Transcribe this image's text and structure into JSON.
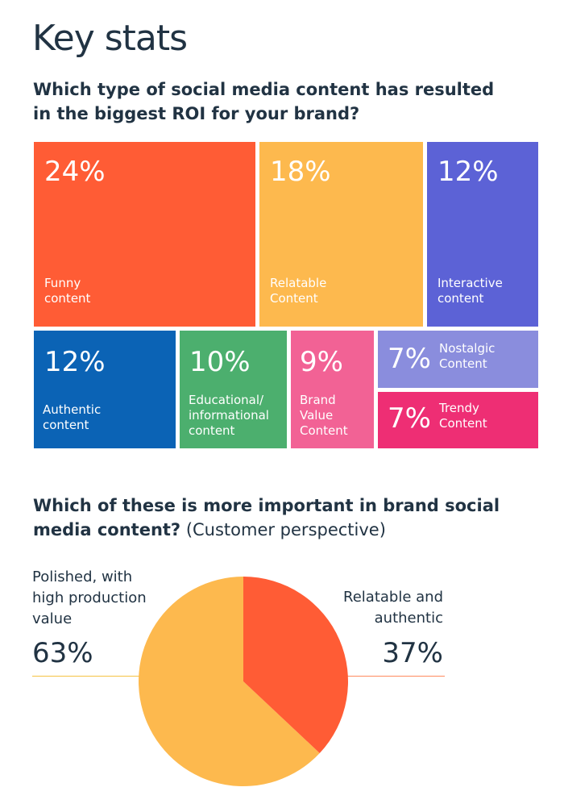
{
  "page": {
    "title": "Key stats",
    "q1": "Which type of social media content has resulted in the biggest ROI for your brand?",
    "q2_bold": "Which of these is more important in brand social media content?",
    "q2_normal": "(Customer perspective)"
  },
  "chart_data": [
    {
      "type": "treemap",
      "title": "Which type of social media content has resulted in the biggest ROI for your brand?",
      "items": [
        {
          "label": "Funny content",
          "value": 24,
          "display": "24%",
          "color": "#FF5C35"
        },
        {
          "label": "Relatable Content",
          "value": 18,
          "display": "18%",
          "color": "#FDB94E"
        },
        {
          "label": "Interactive content",
          "value": 12,
          "display": "12%",
          "color": "#5C62D6"
        },
        {
          "label": "Authentic content",
          "value": 12,
          "display": "12%",
          "color": "#0B63B5"
        },
        {
          "label": "Educational/ informational content",
          "value": 10,
          "display": "10%",
          "color": "#4CAF6E"
        },
        {
          "label": "Brand Value Content",
          "value": 9,
          "display": "9%",
          "color": "#F26295"
        },
        {
          "label": "Nostalgic Content",
          "value": 7,
          "display": "7%",
          "color": "#8A8DDD"
        },
        {
          "label": "Trendy Content",
          "value": 7,
          "display": "7%",
          "color": "#EE2E74"
        }
      ]
    },
    {
      "type": "pie",
      "title": "Which of these is more important in brand social media content? (Customer perspective)",
      "slices": [
        {
          "label": "Polished, with high production value",
          "value": 63,
          "display": "63%",
          "color": "#FDB94E"
        },
        {
          "label": "Relatable and authentic",
          "value": 37,
          "display": "37%",
          "color": "#FF5C35"
        }
      ]
    }
  ]
}
